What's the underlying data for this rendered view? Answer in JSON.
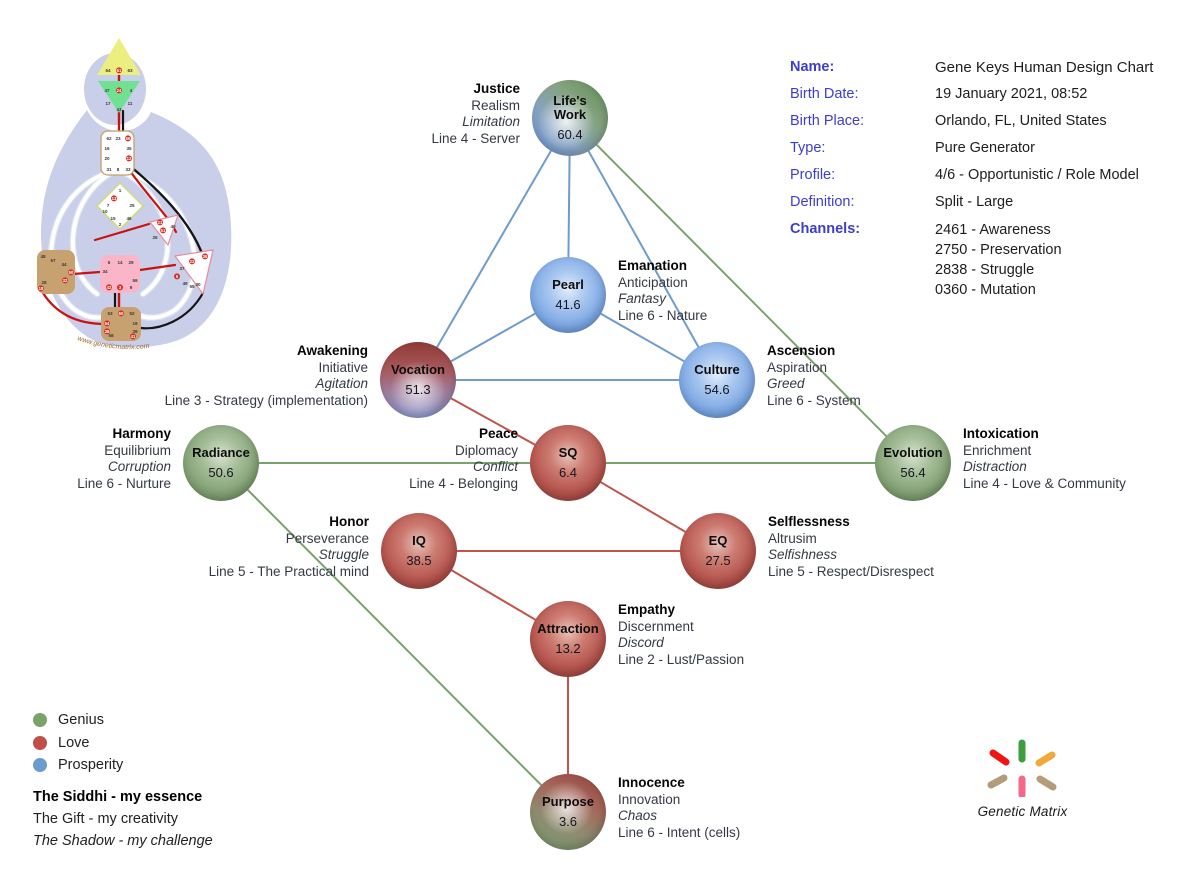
{
  "info_panel": {
    "rows": [
      {
        "label": "Name:",
        "value": "Gene Keys Human Design Chart",
        "bold": true
      },
      {
        "label": "Birth Date:",
        "value": "19 January 2021, 08:52",
        "bold": false
      },
      {
        "label": "Birth Place:",
        "value": "Orlando, FL, United States",
        "bold": false
      },
      {
        "label": "Type:",
        "value": "Pure Generator",
        "bold": false
      },
      {
        "label": "Profile:",
        "value": "4/6 - Opportunistic / Role Model",
        "bold": false
      },
      {
        "label": "Definition:",
        "value": "Split - Large",
        "bold": false
      },
      {
        "label": "Channels:",
        "values": [
          "2461 - Awareness",
          "2750 - Preservation",
          "2838 - Struggle",
          "0360 - Mutation"
        ],
        "bold": true
      }
    ],
    "label_color": "#3d3dcf"
  },
  "legend": {
    "colors": [
      {
        "key": "genius",
        "label": "Genius",
        "color": "#7ba26d"
      },
      {
        "key": "love",
        "label": "Love",
        "color": "#bf4f48"
      },
      {
        "key": "prosperity",
        "label": "Prosperity",
        "color": "#6b9ace"
      }
    ],
    "lines": [
      {
        "text": "The Siddhi - my essence",
        "style": "bold"
      },
      {
        "text": "The Gift - my creativity",
        "style": "normal"
      },
      {
        "text": "The Shadow - my challenge",
        "style": "italic"
      }
    ]
  },
  "diagram": {
    "palette": {
      "genius": "#7aa36c",
      "love": "#c1544b",
      "prosperity": "#6d9ccd"
    },
    "nodes": [
      {
        "id": "lifes_work",
        "label": "Life's\nWork",
        "value": "60.4",
        "color": "genius_prosperity",
        "annotation": {
          "siddhi": "Justice",
          "gift": "Realism",
          "shadow": "Limitation",
          "line": "Line 4 - Server",
          "side": "left"
        }
      },
      {
        "id": "pearl",
        "label": "Pearl",
        "value": "41.6",
        "color": "prosperity",
        "annotation": {
          "siddhi": "Emanation",
          "gift": "Anticipation",
          "shadow": "Fantasy",
          "line": "Line 6 - Nature",
          "side": "right"
        }
      },
      {
        "id": "vocation",
        "label": "Vocation",
        "value": "51.3",
        "color": "love_prosperity",
        "annotation": {
          "siddhi": "Awakening",
          "gift": "Initiative",
          "shadow": "Agitation",
          "line": "Line 3 - Strategy (implementation)",
          "side": "left"
        }
      },
      {
        "id": "culture",
        "label": "Culture",
        "value": "54.6",
        "color": "prosperity",
        "annotation": {
          "siddhi": "Ascension",
          "gift": "Aspiration",
          "shadow": "Greed",
          "line": "Line 6 - System",
          "side": "right"
        }
      },
      {
        "id": "radiance",
        "label": "Radiance",
        "value": "50.6",
        "color": "genius",
        "annotation": {
          "siddhi": "Harmony",
          "gift": "Equilibrium",
          "shadow": "Corruption",
          "line": "Line 6 - Nurture",
          "side": "left"
        }
      },
      {
        "id": "sq",
        "label": "SQ",
        "value": "6.4",
        "color": "love",
        "annotation": {
          "siddhi": "Peace",
          "gift": "Diplomacy",
          "shadow": "Conflict",
          "line": "Line 4 - Belonging",
          "side": "left"
        }
      },
      {
        "id": "evolution",
        "label": "Evolution",
        "value": "56.4",
        "color": "genius",
        "annotation": {
          "siddhi": "Intoxication",
          "gift": "Enrichment",
          "shadow": "Distraction",
          "line": "Line 4 - Love & Community",
          "side": "right"
        }
      },
      {
        "id": "iq",
        "label": "IQ",
        "value": "38.5",
        "color": "love",
        "annotation": {
          "siddhi": "Honor",
          "gift": "Perseverance",
          "shadow": "Struggle",
          "line": "Line 5 - The Practical mind",
          "side": "left"
        }
      },
      {
        "id": "eq",
        "label": "EQ",
        "value": "27.5",
        "color": "love",
        "annotation": {
          "siddhi": "Selflessness",
          "gift": "Altrusim",
          "shadow": "Selfishness",
          "line": "Line 5 - Respect/Disrespect",
          "side": "right"
        }
      },
      {
        "id": "attraction",
        "label": "Attraction",
        "value": "13.2",
        "color": "love",
        "annotation": {
          "siddhi": "Empathy",
          "gift": "Discernment",
          "shadow": "Discord",
          "line": "Line 2 - Lust/Passion",
          "side": "right"
        }
      },
      {
        "id": "purpose",
        "label": "Purpose",
        "value": "3.6",
        "color": "love_genius",
        "annotation": {
          "siddhi": "Innocence",
          "gift": "Innovation",
          "shadow": "Chaos",
          "line": "Line 6 - Intent (cells)",
          "side": "right"
        }
      }
    ],
    "edges": [
      {
        "from": "lifes_work",
        "to": "vocation",
        "color": "prosperity"
      },
      {
        "from": "lifes_work",
        "to": "pearl",
        "color": "prosperity"
      },
      {
        "from": "lifes_work",
        "to": "culture",
        "color": "prosperity"
      },
      {
        "from": "pearl",
        "to": "vocation",
        "color": "prosperity"
      },
      {
        "from": "pearl",
        "to": "culture",
        "color": "prosperity"
      },
      {
        "from": "vocation",
        "to": "culture",
        "color": "prosperity"
      },
      {
        "from": "lifes_work",
        "to": "evolution",
        "color": "genius"
      },
      {
        "from": "radiance",
        "to": "evolution",
        "color": "genius"
      },
      {
        "from": "radiance",
        "to": "purpose",
        "color": "genius"
      },
      {
        "from": "vocation",
        "to": "sq",
        "color": "love"
      },
      {
        "from": "sq",
        "to": "eq",
        "color": "love"
      },
      {
        "from": "iq",
        "to": "eq",
        "color": "love"
      },
      {
        "from": "iq",
        "to": "attraction",
        "color": "love"
      },
      {
        "from": "attraction",
        "to": "purpose",
        "color": "love"
      }
    ]
  },
  "bodygraph": {
    "watermark": "www.geneticmatrix.com",
    "centers": [
      {
        "id": "head",
        "gates": [
          {
            "n": "64"
          },
          {
            "n": "61",
            "hl": true
          },
          {
            "n": "63"
          }
        ]
      },
      {
        "id": "ajna",
        "gates": [
          {
            "n": "47"
          },
          {
            "n": "24",
            "hl": true
          },
          {
            "n": "4"
          },
          {
            "n": "17"
          },
          {
            "n": "11"
          },
          {
            "n": "43"
          }
        ]
      },
      {
        "id": "throat",
        "gates": [
          {
            "n": "62"
          },
          {
            "n": "23"
          },
          {
            "n": "56",
            "hl": true
          },
          {
            "n": "16"
          },
          {
            "n": "35"
          },
          {
            "n": "20"
          },
          {
            "n": "12",
            "hl": true
          },
          {
            "n": "31"
          },
          {
            "n": "8"
          },
          {
            "n": "33"
          }
        ]
      },
      {
        "id": "g",
        "gates": [
          {
            "n": "1"
          },
          {
            "n": "13",
            "hl": true
          },
          {
            "n": "7"
          },
          {
            "n": "25"
          },
          {
            "n": "10"
          },
          {
            "n": "15"
          },
          {
            "n": "46"
          },
          {
            "n": "2"
          }
        ]
      },
      {
        "id": "heart",
        "gates": [
          {
            "n": "21",
            "hl": true
          },
          {
            "n": "51",
            "hl": true
          },
          {
            "n": "26"
          },
          {
            "n": "40"
          }
        ]
      },
      {
        "id": "sacral",
        "gates": [
          {
            "n": "5"
          },
          {
            "n": "14"
          },
          {
            "n": "29"
          },
          {
            "n": "34"
          },
          {
            "n": "59"
          },
          {
            "n": "42",
            "hl": true
          },
          {
            "n": "3",
            "hl": true
          },
          {
            "n": "9"
          }
        ]
      },
      {
        "id": "spleen",
        "gates": [
          {
            "n": "48"
          },
          {
            "n": "57"
          },
          {
            "n": "44"
          },
          {
            "n": "50",
            "hl": true
          },
          {
            "n": "32",
            "hl": true
          },
          {
            "n": "28"
          },
          {
            "n": "18",
            "hl": true
          }
        ]
      },
      {
        "id": "solar",
        "gates": [
          {
            "n": "36",
            "hl": true
          },
          {
            "n": "22",
            "hl": true
          },
          {
            "n": "37"
          },
          {
            "n": "6",
            "hl": true
          },
          {
            "n": "49"
          },
          {
            "n": "55"
          },
          {
            "n": "30"
          }
        ]
      },
      {
        "id": "root",
        "gates": [
          {
            "n": "53"
          },
          {
            "n": "60",
            "hl": true
          },
          {
            "n": "52"
          },
          {
            "n": "19"
          },
          {
            "n": "39"
          },
          {
            "n": "54",
            "hl": true
          },
          {
            "n": "38",
            "hl": true
          },
          {
            "n": "58"
          },
          {
            "n": "41",
            "hl": true
          }
        ]
      }
    ]
  },
  "logo": {
    "brand": "Genetic Matrix"
  }
}
